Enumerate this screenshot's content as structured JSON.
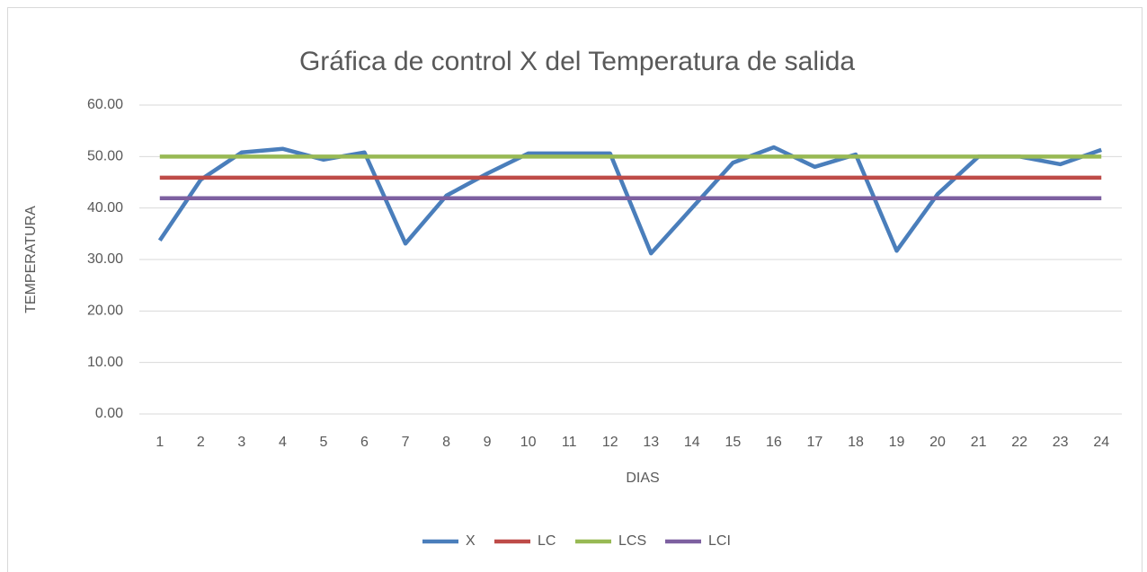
{
  "chart_data": {
    "type": "line",
    "title": "Gráfica de control  X del Temperatura de salida",
    "xlabel": "DIAS",
    "ylabel": "TEMPERATURA",
    "categories": [
      "1",
      "2",
      "3",
      "4",
      "5",
      "6",
      "7",
      "8",
      "9",
      "10",
      "11",
      "12",
      "13",
      "14",
      "15",
      "16",
      "17",
      "18",
      "19",
      "20",
      "21",
      "22",
      "23",
      "24"
    ],
    "series": [
      {
        "name": "X",
        "color": "#4a7ebb",
        "values": [
          33.7,
          45.5,
          50.8,
          51.5,
          49.4,
          50.8,
          33.1,
          42.4,
          46.7,
          50.6,
          50.6,
          50.6,
          31.2,
          40.0,
          48.8,
          51.8,
          48.0,
          50.4,
          31.7,
          42.7,
          50.0,
          50.0,
          48.5,
          51.3
        ]
      },
      {
        "name": "LC",
        "color": "#be4b48",
        "values": [
          45.9,
          45.9,
          45.9,
          45.9,
          45.9,
          45.9,
          45.9,
          45.9,
          45.9,
          45.9,
          45.9,
          45.9,
          45.9,
          45.9,
          45.9,
          45.9,
          45.9,
          45.9,
          45.9,
          45.9,
          45.9,
          45.9,
          45.9,
          45.9
        ]
      },
      {
        "name": "LCS",
        "color": "#98b954",
        "values": [
          50.0,
          50.0,
          50.0,
          50.0,
          50.0,
          50.0,
          50.0,
          50.0,
          50.0,
          50.0,
          50.0,
          50.0,
          50.0,
          50.0,
          50.0,
          50.0,
          50.0,
          50.0,
          50.0,
          50.0,
          50.0,
          50.0,
          50.0,
          50.0
        ]
      },
      {
        "name": "LCI",
        "color": "#7d60a0",
        "values": [
          41.9,
          41.9,
          41.9,
          41.9,
          41.9,
          41.9,
          41.9,
          41.9,
          41.9,
          41.9,
          41.9,
          41.9,
          41.9,
          41.9,
          41.9,
          41.9,
          41.9,
          41.9,
          41.9,
          41.9,
          41.9,
          41.9,
          41.9,
          41.9
        ]
      }
    ],
    "ylim": [
      0,
      60
    ],
    "yticks": [
      {
        "value": 0,
        "label": "0.00"
      },
      {
        "value": 10,
        "label": "10.00"
      },
      {
        "value": 20,
        "label": "20.00"
      },
      {
        "value": 30,
        "label": "30.00"
      },
      {
        "value": 40,
        "label": "40.00"
      },
      {
        "value": 50,
        "label": "50.00"
      },
      {
        "value": 60,
        "label": "60.00"
      }
    ],
    "grid": true,
    "legend": "bottom"
  }
}
